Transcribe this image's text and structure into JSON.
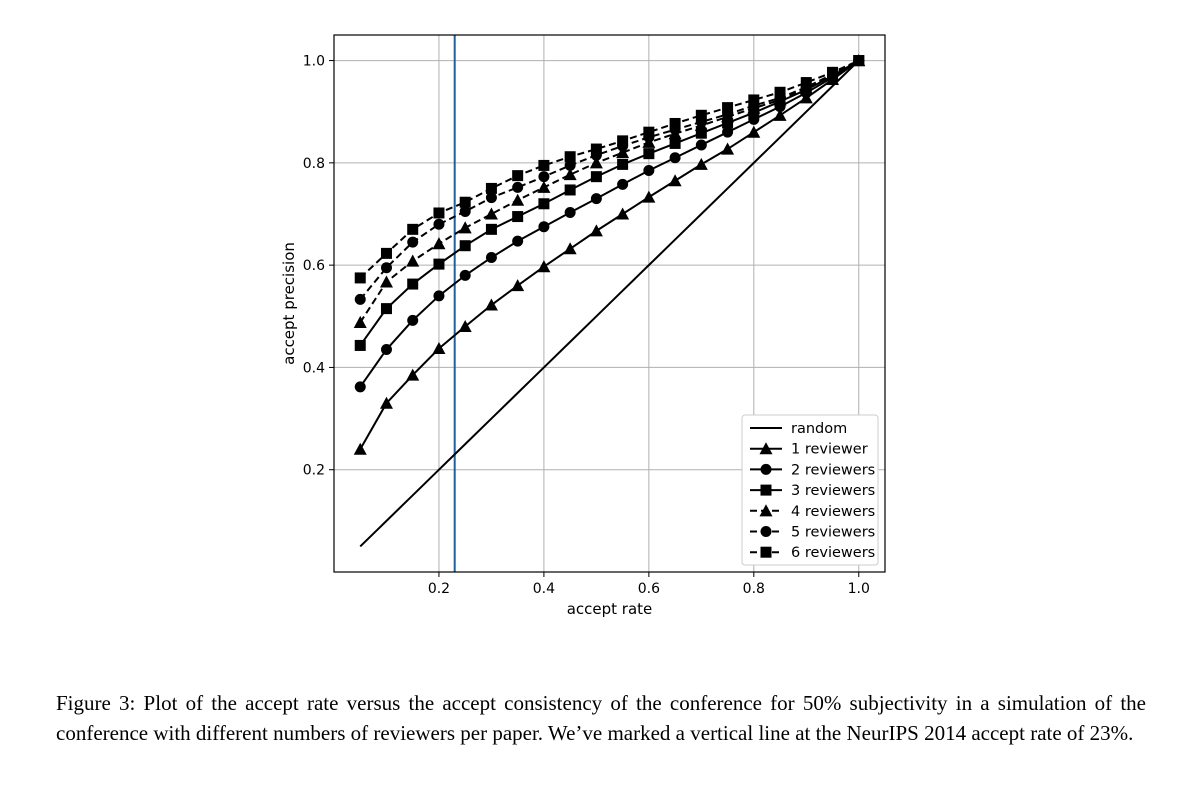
{
  "figure": {
    "caption": "Figure 3: Plot of the accept rate versus the accept consistency of the conference for 50% subjectivity in a simulation of the conference with different numbers of reviewers per paper. We’ve marked a vertical line at the NeurIPS 2014 accept rate of 23%."
  },
  "chart_data": {
    "type": "line",
    "title": "",
    "xlabel": "accept rate",
    "ylabel": "accept precision",
    "xlim": [
      0.0,
      1.05
    ],
    "ylim": [
      0.0,
      1.05
    ],
    "xticks": [
      0.2,
      0.4,
      0.6,
      0.8,
      1.0
    ],
    "yticks": [
      0.2,
      0.4,
      0.6,
      0.8,
      1.0
    ],
    "xtick_labels": [
      "0.2",
      "0.4",
      "0.6",
      "0.8",
      "1.0"
    ],
    "ytick_labels": [
      "0.2",
      "0.4",
      "0.6",
      "0.8",
      "1.0"
    ],
    "grid": true,
    "legend_position": "lower-right",
    "vline": {
      "x": 0.23,
      "color": "#1f5fa0"
    },
    "x": [
      0.05,
      0.1,
      0.15,
      0.2,
      0.25,
      0.3,
      0.35,
      0.4,
      0.45,
      0.5,
      0.55,
      0.6,
      0.65,
      0.7,
      0.75,
      0.8,
      0.85,
      0.9,
      0.95,
      1.0
    ],
    "series": [
      {
        "name": "random",
        "marker": "none",
        "dash": "solid",
        "color": "#000000",
        "values": [
          0.05,
          0.1,
          0.15,
          0.2,
          0.25,
          0.3,
          0.35,
          0.4,
          0.45,
          0.5,
          0.55,
          0.6,
          0.65,
          0.7,
          0.75,
          0.8,
          0.85,
          0.9,
          0.95,
          1.0
        ]
      },
      {
        "name": "1 reviewer",
        "marker": "triangle",
        "dash": "solid",
        "color": "#000000",
        "values": [
          0.24,
          0.33,
          0.385,
          0.437,
          0.48,
          0.522,
          0.56,
          0.597,
          0.632,
          0.667,
          0.7,
          0.733,
          0.765,
          0.797,
          0.827,
          0.86,
          0.893,
          0.927,
          0.963,
          1.0
        ]
      },
      {
        "name": "2 reviewers",
        "marker": "circle",
        "dash": "solid",
        "color": "#000000",
        "values": [
          0.362,
          0.435,
          0.492,
          0.54,
          0.58,
          0.615,
          0.647,
          0.675,
          0.703,
          0.73,
          0.758,
          0.785,
          0.81,
          0.835,
          0.86,
          0.885,
          0.91,
          0.937,
          0.967,
          1.0
        ]
      },
      {
        "name": "3 reviewers",
        "marker": "square",
        "dash": "solid",
        "color": "#000000",
        "values": [
          0.443,
          0.515,
          0.563,
          0.602,
          0.638,
          0.67,
          0.695,
          0.72,
          0.747,
          0.773,
          0.797,
          0.818,
          0.838,
          0.858,
          0.878,
          0.898,
          0.92,
          0.943,
          0.97,
          1.0
        ]
      },
      {
        "name": "4 reviewers",
        "marker": "triangle",
        "dash": "dashed",
        "color": "#000000",
        "values": [
          0.488,
          0.567,
          0.608,
          0.642,
          0.673,
          0.7,
          0.727,
          0.752,
          0.777,
          0.8,
          0.82,
          0.84,
          0.857,
          0.873,
          0.89,
          0.907,
          0.923,
          0.945,
          0.972,
          1.0
        ]
      },
      {
        "name": "5 reviewers",
        "marker": "circle",
        "dash": "dashed",
        "color": "#000000",
        "values": [
          0.533,
          0.595,
          0.645,
          0.68,
          0.705,
          0.732,
          0.752,
          0.773,
          0.795,
          0.815,
          0.833,
          0.85,
          0.865,
          0.88,
          0.895,
          0.912,
          0.927,
          0.948,
          0.973,
          1.0
        ]
      },
      {
        "name": "6 reviewers",
        "marker": "square",
        "dash": "dashed",
        "color": "#000000",
        "values": [
          0.575,
          0.623,
          0.67,
          0.702,
          0.723,
          0.75,
          0.775,
          0.795,
          0.812,
          0.827,
          0.843,
          0.86,
          0.877,
          0.893,
          0.908,
          0.923,
          0.938,
          0.957,
          0.977,
          1.0
        ]
      }
    ]
  }
}
